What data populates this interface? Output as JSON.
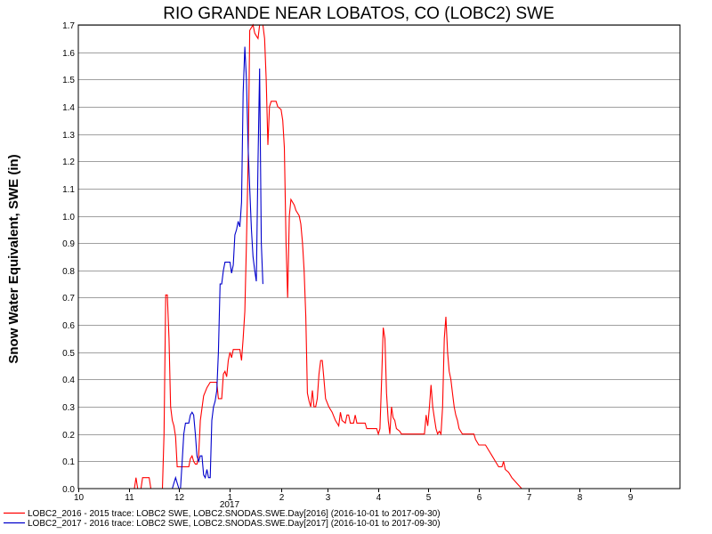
{
  "chart_data": {
    "type": "line",
    "title": "RIO GRANDE NEAR LOBATOS, CO (LOBC2) SWE",
    "ylabel": "Snow Water Equivalent, SWE (in)",
    "xlabel": "",
    "x_year_label": "2017",
    "x_ticks": [
      "10",
      "11",
      "12",
      "1",
      "2",
      "3",
      "4",
      "5",
      "6",
      "7",
      "8",
      "9"
    ],
    "xlim": [
      "2016-10-01",
      "2017-10-01"
    ],
    "ylim": [
      0,
      1.7
    ],
    "y_ticks": [
      "0.0",
      "0.1",
      "0.2",
      "0.3",
      "0.4",
      "0.5",
      "0.6",
      "0.7",
      "0.8",
      "0.9",
      "1.0",
      "1.1",
      "1.2",
      "1.3",
      "1.4",
      "1.5",
      "1.6",
      "1.7"
    ],
    "grid": true,
    "legend_position": "bottom-left",
    "series": [
      {
        "name": "LOBC2_2016 - 2015 trace: LOBC2 SWE, LOBC2.SNODAS.SWE.Day[2016] (2016-10-01 to 2017-09-30)",
        "color": "#ff0000",
        "points": [
          [
            "2016-11-04",
            0
          ],
          [
            "2016-11-05",
            0.04
          ],
          [
            "2016-11-06",
            0
          ],
          [
            "2016-11-08",
            0
          ],
          [
            "2016-11-09",
            0.04
          ],
          [
            "2016-11-13",
            0.04
          ],
          [
            "2016-11-14",
            0
          ],
          [
            "2016-11-21",
            0
          ],
          [
            "2016-11-22",
            0.2
          ],
          [
            "2016-11-23",
            0.71
          ],
          [
            "2016-11-24",
            0.71
          ],
          [
            "2016-11-25",
            0.55
          ],
          [
            "2016-11-26",
            0.3
          ],
          [
            "2016-11-27",
            0.25
          ],
          [
            "2016-11-28",
            0.23
          ],
          [
            "2016-11-29",
            0.19
          ],
          [
            "2016-11-30",
            0.08
          ],
          [
            "2016-12-07",
            0.08
          ],
          [
            "2016-12-08",
            0.11
          ],
          [
            "2016-12-09",
            0.12
          ],
          [
            "2016-12-10",
            0.1
          ],
          [
            "2016-12-11",
            0.09
          ],
          [
            "2016-12-12",
            0.09
          ],
          [
            "2016-12-13",
            0.12
          ],
          [
            "2016-12-14",
            0.25
          ],
          [
            "2016-12-16",
            0.34
          ],
          [
            "2016-12-18",
            0.37
          ],
          [
            "2016-12-20",
            0.39
          ],
          [
            "2016-12-24",
            0.39
          ],
          [
            "2016-12-25",
            0.33
          ],
          [
            "2016-12-27",
            0.33
          ],
          [
            "2016-12-28",
            0.42
          ],
          [
            "2016-12-29",
            0.43
          ],
          [
            "2016-12-30",
            0.41
          ],
          [
            "2016-12-31",
            0.47
          ],
          [
            "2017-01-01",
            0.5
          ],
          [
            "2017-01-02",
            0.48
          ],
          [
            "2017-01-03",
            0.51
          ],
          [
            "2017-01-07",
            0.51
          ],
          [
            "2017-01-08",
            0.47
          ],
          [
            "2017-01-09",
            0.55
          ],
          [
            "2017-01-10",
            0.65
          ],
          [
            "2017-01-11",
            0.9
          ],
          [
            "2017-01-12",
            1.2
          ],
          [
            "2017-01-13",
            1.68
          ],
          [
            "2017-01-15",
            1.7
          ],
          [
            "2017-01-16",
            1.67
          ],
          [
            "2017-01-17",
            1.66
          ],
          [
            "2017-01-18",
            1.65
          ],
          [
            "2017-01-19",
            1.7
          ],
          [
            "2017-01-21",
            1.7
          ],
          [
            "2017-01-22",
            1.65
          ],
          [
            "2017-01-23",
            1.5
          ],
          [
            "2017-01-24",
            1.26
          ],
          [
            "2017-01-25",
            1.4
          ],
          [
            "2017-01-26",
            1.42
          ],
          [
            "2017-01-29",
            1.42
          ],
          [
            "2017-01-30",
            1.4
          ],
          [
            "2017-02-01",
            1.39
          ],
          [
            "2017-02-02",
            1.35
          ],
          [
            "2017-02-03",
            1.25
          ],
          [
            "2017-02-04",
            0.9
          ],
          [
            "2017-02-05",
            0.7
          ],
          [
            "2017-02-06",
            1.0
          ],
          [
            "2017-02-07",
            1.06
          ],
          [
            "2017-02-09",
            1.04
          ],
          [
            "2017-02-10",
            1.02
          ],
          [
            "2017-02-12",
            1.0
          ],
          [
            "2017-02-13",
            0.97
          ],
          [
            "2017-02-14",
            0.9
          ],
          [
            "2017-02-15",
            0.8
          ],
          [
            "2017-02-16",
            0.63
          ],
          [
            "2017-02-17",
            0.35
          ],
          [
            "2017-02-18",
            0.32
          ],
          [
            "2017-02-19",
            0.3
          ],
          [
            "2017-02-20",
            0.36
          ],
          [
            "2017-02-21",
            0.3
          ],
          [
            "2017-02-22",
            0.3
          ],
          [
            "2017-02-23",
            0.33
          ],
          [
            "2017-02-24",
            0.42
          ],
          [
            "2017-02-25",
            0.47
          ],
          [
            "2017-02-26",
            0.47
          ],
          [
            "2017-02-27",
            0.4
          ],
          [
            "2017-02-28",
            0.33
          ],
          [
            "2017-03-02",
            0.3
          ],
          [
            "2017-03-04",
            0.28
          ],
          [
            "2017-03-06",
            0.25
          ],
          [
            "2017-03-08",
            0.23
          ],
          [
            "2017-03-09",
            0.28
          ],
          [
            "2017-03-10",
            0.25
          ],
          [
            "2017-03-12",
            0.24
          ],
          [
            "2017-03-13",
            0.27
          ],
          [
            "2017-03-14",
            0.27
          ],
          [
            "2017-03-15",
            0.24
          ],
          [
            "2017-03-17",
            0.24
          ],
          [
            "2017-03-18",
            0.27
          ],
          [
            "2017-03-19",
            0.24
          ],
          [
            "2017-03-24",
            0.24
          ],
          [
            "2017-03-25",
            0.22
          ],
          [
            "2017-03-31",
            0.22
          ],
          [
            "2017-04-01",
            0.2
          ],
          [
            "2017-04-02",
            0.22
          ],
          [
            "2017-04-03",
            0.4
          ],
          [
            "2017-04-04",
            0.59
          ],
          [
            "2017-04-05",
            0.55
          ],
          [
            "2017-04-06",
            0.35
          ],
          [
            "2017-04-07",
            0.25
          ],
          [
            "2017-04-08",
            0.2
          ],
          [
            "2017-04-09",
            0.3
          ],
          [
            "2017-04-10",
            0.26
          ],
          [
            "2017-04-11",
            0.25
          ],
          [
            "2017-04-12",
            0.22
          ],
          [
            "2017-04-14",
            0.21
          ],
          [
            "2017-04-15",
            0.2
          ],
          [
            "2017-04-29",
            0.2
          ],
          [
            "2017-04-30",
            0.27
          ],
          [
            "2017-05-01",
            0.23
          ],
          [
            "2017-05-02",
            0.3
          ],
          [
            "2017-05-03",
            0.38
          ],
          [
            "2017-05-04",
            0.3
          ],
          [
            "2017-05-05",
            0.26
          ],
          [
            "2017-05-06",
            0.22
          ],
          [
            "2017-05-07",
            0.2
          ],
          [
            "2017-05-08",
            0.21
          ],
          [
            "2017-05-09",
            0.2
          ],
          [
            "2017-05-10",
            0.3
          ],
          [
            "2017-05-11",
            0.55
          ],
          [
            "2017-05-12",
            0.63
          ],
          [
            "2017-05-13",
            0.5
          ],
          [
            "2017-05-14",
            0.43
          ],
          [
            "2017-05-15",
            0.4
          ],
          [
            "2017-05-16",
            0.35
          ],
          [
            "2017-05-17",
            0.3
          ],
          [
            "2017-05-18",
            0.27
          ],
          [
            "2017-05-19",
            0.25
          ],
          [
            "2017-05-20",
            0.22
          ],
          [
            "2017-05-22",
            0.2
          ],
          [
            "2017-05-29",
            0.2
          ],
          [
            "2017-05-30",
            0.18
          ],
          [
            "2017-06-01",
            0.16
          ],
          [
            "2017-06-05",
            0.16
          ],
          [
            "2017-06-07",
            0.14
          ],
          [
            "2017-06-09",
            0.12
          ],
          [
            "2017-06-11",
            0.1
          ],
          [
            "2017-06-13",
            0.08
          ],
          [
            "2017-06-15",
            0.08
          ],
          [
            "2017-06-16",
            0.1
          ],
          [
            "2017-06-17",
            0.07
          ],
          [
            "2017-06-19",
            0.06
          ],
          [
            "2017-06-21",
            0.04
          ],
          [
            "2017-06-24",
            0.02
          ],
          [
            "2017-06-27",
            0
          ]
        ]
      },
      {
        "name": "LOBC2_2017 - 2016 trace: LOBC2 SWE, LOBC2.SNODAS.SWE.Day[2017] (2016-10-01 to 2017-09-30)",
        "color": "#0000cc",
        "points": [
          [
            "2016-11-27",
            0
          ],
          [
            "2016-11-28",
            0.02
          ],
          [
            "2016-11-29",
            0.04
          ],
          [
            "2016-11-30",
            0.02
          ],
          [
            "2016-12-01",
            0.0
          ],
          [
            "2016-12-02",
            0.0
          ],
          [
            "2016-12-03",
            0.1
          ],
          [
            "2016-12-04",
            0.2
          ],
          [
            "2016-12-05",
            0.24
          ],
          [
            "2016-12-07",
            0.24
          ],
          [
            "2016-12-08",
            0.27
          ],
          [
            "2016-12-09",
            0.28
          ],
          [
            "2016-12-10",
            0.27
          ],
          [
            "2016-12-11",
            0.2
          ],
          [
            "2016-12-12",
            0.12
          ],
          [
            "2016-12-13",
            0.1
          ],
          [
            "2016-12-14",
            0.12
          ],
          [
            "2016-12-15",
            0.12
          ],
          [
            "2016-12-16",
            0.05
          ],
          [
            "2016-12-17",
            0.04
          ],
          [
            "2016-12-18",
            0.07
          ],
          [
            "2016-12-19",
            0.04
          ],
          [
            "2016-12-20",
            0.04
          ],
          [
            "2016-12-21",
            0.25
          ],
          [
            "2016-12-22",
            0.3
          ],
          [
            "2016-12-23",
            0.32
          ],
          [
            "2016-12-24",
            0.36
          ],
          [
            "2016-12-25",
            0.5
          ],
          [
            "2016-12-26",
            0.75
          ],
          [
            "2016-12-27",
            0.75
          ],
          [
            "2016-12-28",
            0.8
          ],
          [
            "2016-12-29",
            0.83
          ],
          [
            "2017-01-01",
            0.83
          ],
          [
            "2017-01-02",
            0.79
          ],
          [
            "2017-01-03",
            0.82
          ],
          [
            "2017-01-04",
            0.93
          ],
          [
            "2017-01-05",
            0.95
          ],
          [
            "2017-01-06",
            0.98
          ],
          [
            "2017-01-07",
            0.96
          ],
          [
            "2017-01-08",
            1.05
          ],
          [
            "2017-01-09",
            1.45
          ],
          [
            "2017-01-10",
            1.62
          ],
          [
            "2017-01-11",
            1.5
          ],
          [
            "2017-01-12",
            1.25
          ],
          [
            "2017-01-13",
            1.1
          ],
          [
            "2017-01-14",
            0.95
          ],
          [
            "2017-01-15",
            0.85
          ],
          [
            "2017-01-16",
            0.8
          ],
          [
            "2017-01-17",
            0.76
          ],
          [
            "2017-01-18",
            1.2
          ],
          [
            "2017-01-19",
            1.54
          ],
          [
            "2017-01-20",
            0.9
          ],
          [
            "2017-01-21",
            0.75
          ]
        ]
      }
    ]
  }
}
